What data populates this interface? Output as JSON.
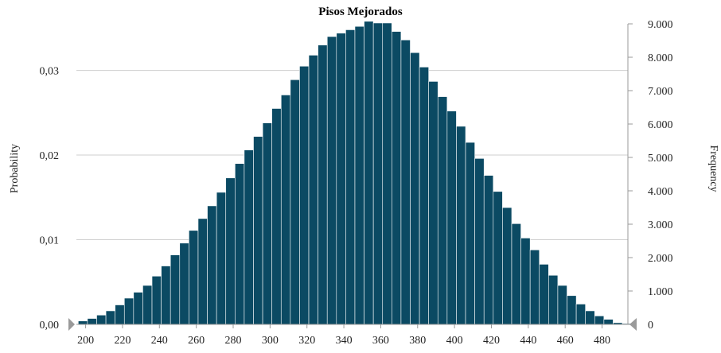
{
  "chart_data": {
    "type": "bar",
    "title": "Pisos Mejorados",
    "ylabel_left": "Probability",
    "ylabel_right": "Frequency",
    "x_ticks": [
      "200",
      "220",
      "240",
      "260",
      "280",
      "300",
      "320",
      "340",
      "360",
      "380",
      "400",
      "420",
      "440",
      "460",
      "480"
    ],
    "y_left_ticks": [
      "0,00",
      "0,01",
      "0,02",
      "0,03"
    ],
    "y_right_ticks": [
      "0",
      "1.000",
      "2.000",
      "3.000",
      "4.000",
      "5.000",
      "6.000",
      "7.000",
      "8.000",
      "9.000"
    ],
    "xlim": [
      195,
      494
    ],
    "ylim_left": [
      0,
      0.0355
    ],
    "ylim_right": [
      0,
      9000
    ],
    "bin_start": 196,
    "bin_width": 5,
    "values": [
      0.0004,
      0.0007,
      0.0011,
      0.0016,
      0.0023,
      0.0031,
      0.0038,
      0.0046,
      0.0057,
      0.0069,
      0.0082,
      0.0096,
      0.0111,
      0.0125,
      0.014,
      0.0156,
      0.0173,
      0.019,
      0.0206,
      0.0222,
      0.0238,
      0.0255,
      0.0271,
      0.0289,
      0.0305,
      0.0318,
      0.033,
      0.034,
      0.0344,
      0.0348,
      0.0352,
      0.0358,
      0.0356,
      0.0356,
      0.0346,
      0.0336,
      0.0321,
      0.0304,
      0.0287,
      0.0269,
      0.0252,
      0.0234,
      0.0215,
      0.0196,
      0.0176,
      0.0157,
      0.0138,
      0.0119,
      0.0102,
      0.0088,
      0.0071,
      0.0058,
      0.0046,
      0.0034,
      0.0024,
      0.0016,
      0.001,
      0.0006,
      0.0002,
      0.0001
    ],
    "colors": {
      "bar": "#0b4a63",
      "grid": "#cfcfcf",
      "marker": "#9a9a9a"
    },
    "grid": true
  }
}
